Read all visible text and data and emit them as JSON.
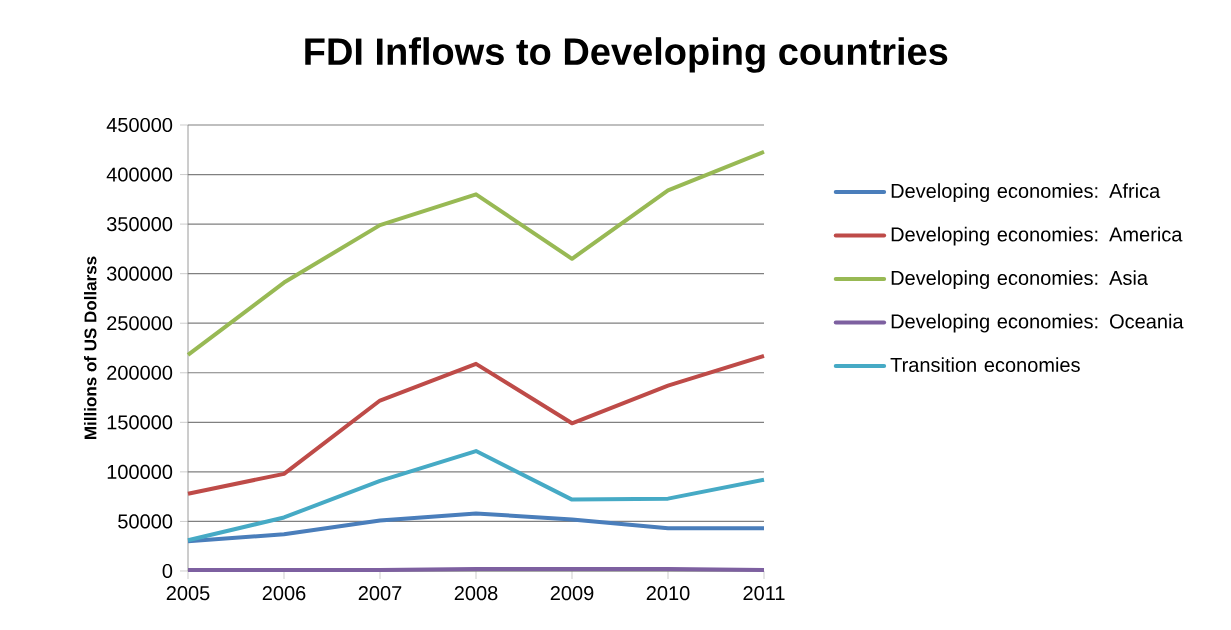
{
  "chart_data": {
    "type": "line",
    "title": "FDI Inflows to Developing countries",
    "ylabel": "Millions of US Dollarss",
    "categories": [
      "2005",
      "2006",
      "2007",
      "2008",
      "2009",
      "2010",
      "2011"
    ],
    "series": [
      {
        "name": "Developing economies: Africa",
        "color": "#4a7ebb",
        "values": [
          30000,
          37000,
          51000,
          58000,
          52000,
          43000,
          43000
        ]
      },
      {
        "name": "Developing economies: America",
        "color": "#be4b48",
        "values": [
          78000,
          98000,
          172000,
          209000,
          149000,
          187000,
          217000
        ]
      },
      {
        "name": "Developing economies: Asia",
        "color": "#98b954",
        "values": [
          218000,
          291000,
          349000,
          380000,
          315000,
          384000,
          423000
        ]
      },
      {
        "name": "Developing economies: Oceania",
        "color": "#7d60a0",
        "values": [
          1000,
          1000,
          1000,
          2000,
          2000,
          2000,
          1000
        ]
      },
      {
        "name": "Transition economies",
        "color": "#46aac5",
        "values": [
          31000,
          54000,
          91000,
          121000,
          72000,
          73000,
          92000
        ]
      }
    ],
    "ylim": [
      0,
      450000
    ],
    "yticks": [
      0,
      50000,
      100000,
      150000,
      200000,
      250000,
      300000,
      350000,
      400000,
      450000
    ],
    "grid": "y",
    "legend": "right",
    "marker": "none",
    "line_style": "solid"
  }
}
